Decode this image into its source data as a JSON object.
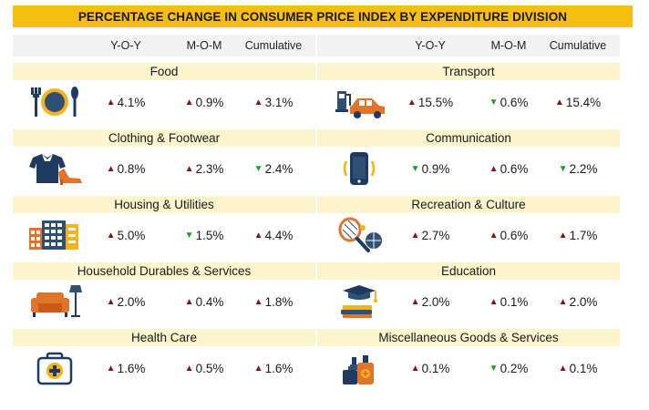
{
  "title": "PERCENTAGE CHANGE IN CONSUMER PRICE INDEX BY EXPENDITURE DIVISION",
  "columns": [
    "Y-O-Y",
    "M-O-M",
    "Cumulative"
  ],
  "colors": {
    "up": "#8b1111",
    "down": "#1f9a2c",
    "title_bg": "#f6be13",
    "band_bg": "#fbf4cd"
  },
  "left": [
    {
      "name": "Food",
      "icon": "plate-cutlery-icon",
      "values": [
        {
          "dir": "up",
          "text": "4.1%"
        },
        {
          "dir": "up",
          "text": "0.9%"
        },
        {
          "dir": "up",
          "text": "3.1%"
        }
      ]
    },
    {
      "name": "Clothing & Footwear",
      "icon": "shirt-shoe-icon",
      "values": [
        {
          "dir": "up",
          "text": "0.8%"
        },
        {
          "dir": "up",
          "text": "2.3%"
        },
        {
          "dir": "down",
          "text": "2.4%"
        }
      ]
    },
    {
      "name": "Housing & Utilities",
      "icon": "buildings-icon",
      "values": [
        {
          "dir": "up",
          "text": "5.0%"
        },
        {
          "dir": "down",
          "text": "1.5%"
        },
        {
          "dir": "up",
          "text": "4.4%"
        }
      ]
    },
    {
      "name": "Household Durables & Services",
      "icon": "sofa-lamp-icon",
      "values": [
        {
          "dir": "up",
          "text": "2.0%"
        },
        {
          "dir": "up",
          "text": "0.4%"
        },
        {
          "dir": "up",
          "text": "1.8%"
        }
      ]
    },
    {
      "name": "Health Care",
      "icon": "first-aid-kit-icon",
      "values": [
        {
          "dir": "up",
          "text": "1.6%"
        },
        {
          "dir": "up",
          "text": "0.5%"
        },
        {
          "dir": "up",
          "text": "1.6%"
        }
      ]
    }
  ],
  "right": [
    {
      "name": "Transport",
      "icon": "fuel-car-icon",
      "values": [
        {
          "dir": "up",
          "text": "15.5%"
        },
        {
          "dir": "down",
          "text": "0.6%"
        },
        {
          "dir": "up",
          "text": "15.4%"
        }
      ]
    },
    {
      "name": "Communication",
      "icon": "smartphone-icon",
      "values": [
        {
          "dir": "down",
          "text": "0.9%"
        },
        {
          "dir": "up",
          "text": "0.6%"
        },
        {
          "dir": "down",
          "text": "2.2%"
        }
      ]
    },
    {
      "name": "Recreation & Culture",
      "icon": "racket-ball-icon",
      "values": [
        {
          "dir": "up",
          "text": "2.7%"
        },
        {
          "dir": "up",
          "text": "0.6%"
        },
        {
          "dir": "up",
          "text": "1.7%"
        }
      ]
    },
    {
      "name": "Education",
      "icon": "graduation-cap-books-icon",
      "values": [
        {
          "dir": "up",
          "text": "2.0%"
        },
        {
          "dir": "up",
          "text": "0.1%"
        },
        {
          "dir": "up",
          "text": "2.0%"
        }
      ]
    },
    {
      "name": "Miscellaneous Goods & Services",
      "icon": "cosmetics-icon",
      "values": [
        {
          "dir": "up",
          "text": "0.1%"
        },
        {
          "dir": "down",
          "text": "0.2%"
        },
        {
          "dir": "up",
          "text": "0.1%"
        }
      ]
    }
  ]
}
